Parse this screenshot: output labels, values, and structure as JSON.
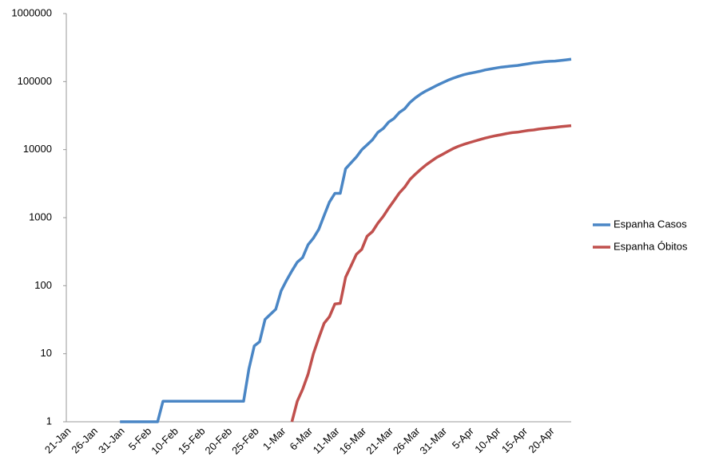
{
  "chart_data": {
    "type": "line",
    "yscale": "log",
    "grid": false,
    "legend": "right",
    "categories": [
      "21-Jan",
      null,
      null,
      null,
      null,
      "26-Jan",
      null,
      null,
      null,
      null,
      "31-Jan",
      null,
      null,
      null,
      null,
      "5-Feb",
      null,
      null,
      null,
      null,
      "10-Feb",
      null,
      null,
      null,
      null,
      "15-Feb",
      null,
      null,
      null,
      null,
      "20-Feb",
      null,
      null,
      null,
      null,
      "25-Feb",
      null,
      null,
      null,
      null,
      "1-Mar",
      null,
      null,
      null,
      null,
      "6-Mar",
      null,
      null,
      null,
      null,
      "11-Mar",
      null,
      null,
      null,
      null,
      "16-Mar",
      null,
      null,
      null,
      null,
      "21-Mar",
      null,
      null,
      null,
      null,
      "26-Mar",
      null,
      null,
      null,
      null,
      "31-Mar",
      null,
      null,
      null,
      null,
      "5-Apr",
      null,
      null,
      null,
      null,
      "10-Apr",
      null,
      null,
      null,
      null,
      "15-Apr",
      null,
      null,
      null,
      null,
      "20-Apr",
      null,
      null,
      null,
      null
    ],
    "series": [
      {
        "name": "Espanha Casos",
        "color": "#4a86c5",
        "values": [
          null,
          null,
          null,
          null,
          null,
          null,
          null,
          null,
          null,
          null,
          1,
          1,
          1,
          1,
          1,
          1,
          1,
          1,
          2,
          2,
          2,
          2,
          2,
          2,
          2,
          2,
          2,
          2,
          2,
          2,
          2,
          2,
          2,
          2,
          6,
          13,
          15,
          32,
          38,
          45,
          84,
          120,
          165,
          222,
          259,
          400,
          500,
          673,
          1073,
          1695,
          2277,
          2277,
          5232,
          6391,
          7798,
          9942,
          11748,
          13910,
          17963,
          20410,
          25374,
          28603,
          35136,
          39885,
          49515,
          57786,
          65719,
          73235,
          80110,
          87956,
          95923,
          104118,
          112065,
          119199,
          126168,
          131646,
          136675,
          141942,
          148220,
          153222,
          158273,
          163027,
          166019,
          169496,
          172541,
          177633,
          182816,
          188068,
          191726,
          195944,
          198674,
          200210,
          204178,
          208389,
          213024
        ]
      },
      {
        "name": "Espanha Óbitos",
        "color": "#c0504d",
        "values": [
          null,
          null,
          null,
          null,
          null,
          null,
          null,
          null,
          null,
          null,
          null,
          null,
          null,
          null,
          null,
          null,
          null,
          null,
          null,
          null,
          null,
          null,
          null,
          null,
          null,
          null,
          null,
          null,
          null,
          null,
          null,
          null,
          null,
          null,
          null,
          null,
          null,
          null,
          null,
          null,
          null,
          null,
          1,
          2,
          3,
          5,
          10,
          17,
          28,
          35,
          54,
          55,
          133,
          195,
          289,
          342,
          533,
          623,
          830,
          1043,
          1375,
          1772,
          2311,
          2808,
          3647,
          4365,
          5138,
          5982,
          6803,
          7716,
          8464,
          9387,
          10348,
          11198,
          11947,
          12641,
          13341,
          14045,
          14792,
          15447,
          16081,
          16606,
          17209,
          17756,
          18056,
          18579,
          19130,
          19478,
          20043,
          20453,
          20852,
          21282,
          21717,
          22157,
          22524
        ]
      }
    ],
    "ylim": [
      1,
      1000000
    ],
    "yticks": [
      1,
      10,
      100,
      1000,
      10000,
      100000,
      1000000
    ]
  }
}
